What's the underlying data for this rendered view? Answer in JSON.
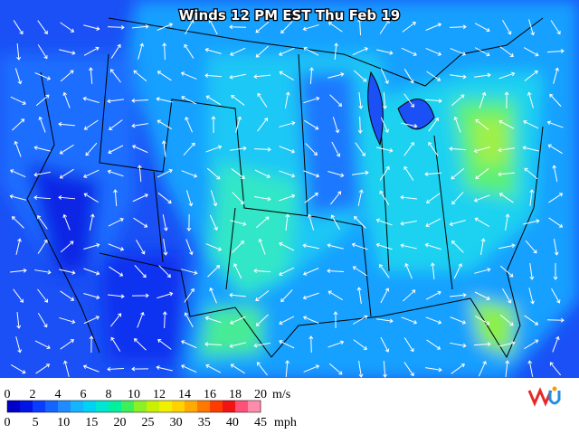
{
  "header": {
    "title": "Winds 12 PM EST Thu Feb 19"
  },
  "legend": {
    "ms_ticks": [
      0,
      2,
      4,
      6,
      8,
      10,
      12,
      14,
      16,
      18,
      20
    ],
    "ms_unit": "m/s",
    "mph_ticks": [
      0,
      5,
      10,
      15,
      20,
      25,
      30,
      35,
      40,
      45
    ],
    "mph_unit": "mph",
    "colors": [
      "#0000c8",
      "#0014e6",
      "#0a3cff",
      "#1464ff",
      "#1e8cff",
      "#14b4ff",
      "#00d2f5",
      "#00e6d2",
      "#00f0a0",
      "#3cf05a",
      "#8cf028",
      "#c8f000",
      "#f0f000",
      "#ffd200",
      "#ffaa00",
      "#ff7800",
      "#ff3c00",
      "#f01414",
      "#ff5078",
      "#ff8caa"
    ]
  }
}
